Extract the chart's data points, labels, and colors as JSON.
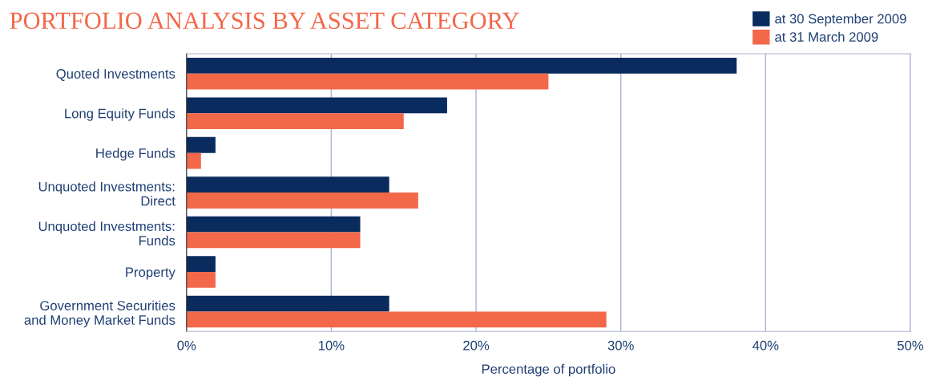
{
  "chart_data": {
    "type": "bar",
    "orientation": "horizontal",
    "title": "PORTFOLIO ANALYSIS BY ASSET CATEGORY",
    "xlabel": "Percentage of portfolio",
    "categories": [
      "Quoted Investments",
      "Long Equity Funds",
      "Hedge Funds",
      "Unquoted Investments:\nDirect",
      "Unquoted Investments:\nFunds",
      "Property",
      "Government Securities\nand Money Market Funds"
    ],
    "series": [
      {
        "name": "at 30 September 2009",
        "color": "#0a2b5e",
        "values": [
          38,
          18,
          2,
          14,
          12,
          2,
          14
        ]
      },
      {
        "name": "at 31 March 2009",
        "color": "#f26849",
        "values": [
          25,
          15,
          1,
          16,
          12,
          2,
          29
        ]
      }
    ],
    "xlim": [
      0,
      50
    ],
    "xticks": [
      {
        "value": 0,
        "label": "0%"
      },
      {
        "value": 10,
        "label": "10%"
      },
      {
        "value": 20,
        "label": "20%"
      },
      {
        "value": 30,
        "label": "30%"
      },
      {
        "value": 40,
        "label": "40%"
      },
      {
        "value": 50,
        "label": "50%"
      }
    ],
    "grid": "x",
    "legend": "top right"
  }
}
